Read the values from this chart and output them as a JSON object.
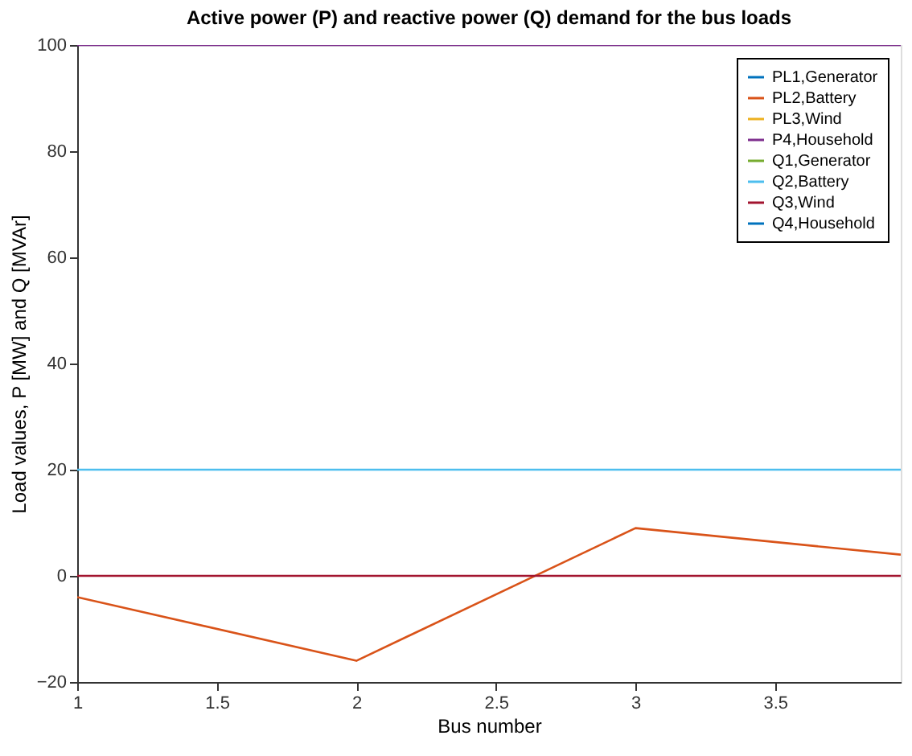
{
  "chart_data": {
    "type": "line",
    "title": "Active power (P) and reactive power (Q) demand for the bus loads",
    "xlabel": "Bus number",
    "ylabel": "Load values, P [MW] and Q [MVAr]",
    "x": [
      1,
      2,
      3,
      3.95
    ],
    "series": [
      {
        "name": "PL1,Generator",
        "color": "#0072bd",
        "values": [
          null,
          null,
          null,
          null
        ]
      },
      {
        "name": "PL2,Battery",
        "color": "#d95319",
        "values": [
          -4,
          -16,
          9,
          4
        ]
      },
      {
        "name": "PL3,Wind",
        "color": "#edb120",
        "values": [
          null,
          null,
          null,
          null
        ]
      },
      {
        "name": "P4,Household",
        "color": "#7e2f8e",
        "values": [
          100,
          100,
          100,
          100
        ]
      },
      {
        "name": "Q1,Generator",
        "color": "#77ac30",
        "values": [
          null,
          null,
          null,
          null
        ]
      },
      {
        "name": "Q2,Battery",
        "color": "#4dbeee",
        "values": [
          20,
          20,
          20,
          20
        ]
      },
      {
        "name": "Q3,Wind",
        "color": "#a2142f",
        "values": [
          0,
          0,
          0,
          0
        ]
      },
      {
        "name": "Q4,Household",
        "color": "#0072bd",
        "values": [
          null,
          null,
          null,
          null
        ]
      }
    ],
    "xlim": [
      1,
      3.95
    ],
    "xticks": [
      1,
      1.5,
      2,
      2.5,
      3,
      3.5
    ],
    "ylim": [
      -20,
      100
    ],
    "yticks": [
      -20,
      0,
      20,
      40,
      60,
      80,
      100
    ],
    "grid": false,
    "legend": "top right",
    "line_style": "solid",
    "marker": "none"
  }
}
